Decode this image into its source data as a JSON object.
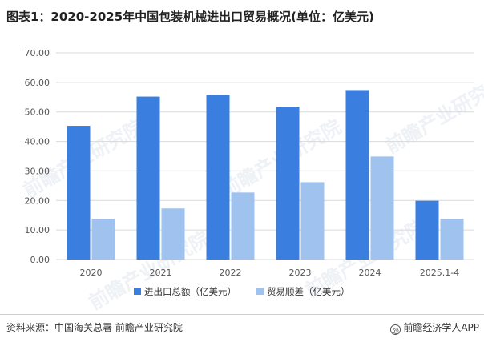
{
  "title": "图表1：2020-2025年中国包装机械进出口贸易概况(单位：亿美元)",
  "footer": {
    "source": "资料来源：中国海关总署 前瞻产业研究院",
    "brand": "前瞻经济学人APP",
    "brand_icon": "at-icon"
  },
  "watermark": "前瞻产业研究院",
  "colors": {
    "series1": "#3A7FDF",
    "series2": "#A0C2EE",
    "grid": "#D9D9D9",
    "watermark": "#EEF1F5"
  },
  "chart_data": {
    "type": "bar",
    "title": "图表1：2020-2025年中国包装机械进出口贸易概况(单位：亿美元)",
    "categories": [
      "2020",
      "2021",
      "2022",
      "2023",
      "2024",
      "2025.1-4"
    ],
    "series": [
      {
        "name": "进出口总额（亿美元）",
        "values": [
          45.3,
          55.2,
          55.8,
          51.8,
          57.4,
          19.9
        ]
      },
      {
        "name": "贸易顺差（亿美元）",
        "values": [
          13.8,
          17.3,
          22.7,
          26.2,
          34.9,
          13.8
        ]
      }
    ],
    "yticks": [
      "0.00",
      "10.00",
      "20.00",
      "30.00",
      "40.00",
      "50.00",
      "60.00",
      "70.00"
    ],
    "ylim": [
      0,
      70
    ],
    "xlabel": "",
    "ylabel": "",
    "grid": true,
    "legend": "bottom-center"
  }
}
